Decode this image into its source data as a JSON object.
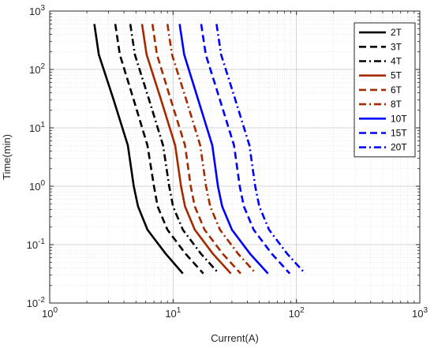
{
  "chart_data": {
    "type": "line",
    "xlabel": "Current(A)",
    "ylabel": "Time(min)",
    "xscale": "log",
    "yscale": "log",
    "xlim": [
      1,
      1000
    ],
    "ylim": [
      0.01,
      1000
    ],
    "grid": true,
    "minor_grid": true,
    "legend_position": "top-right",
    "x_ticks": [
      {
        "value": 1,
        "base": "10",
        "exp": "0"
      },
      {
        "value": 10,
        "base": "10",
        "exp": "1"
      },
      {
        "value": 100,
        "base": "10",
        "exp": "2"
      },
      {
        "value": 1000,
        "base": "10",
        "exp": "3"
      }
    ],
    "y_ticks": [
      {
        "value": 0.01,
        "base": "10",
        "exp": "-2"
      },
      {
        "value": 0.1,
        "base": "10",
        "exp": "-1"
      },
      {
        "value": 1,
        "base": "10",
        "exp": "0"
      },
      {
        "value": 10,
        "base": "10",
        "exp": "1"
      },
      {
        "value": 100,
        "base": "10",
        "exp": "2"
      },
      {
        "value": 1000,
        "base": "10",
        "exp": "3"
      }
    ],
    "series": [
      {
        "name": "2T",
        "color": "#000000",
        "dash": "solid",
        "x": [
          2.3,
          2.5,
          3.3,
          4.3,
          4.8,
          5.2,
          6.2,
          8.7,
          12.0
        ],
        "y": [
          600,
          180,
          30,
          5.0,
          1.0,
          0.45,
          0.18,
          0.07,
          0.032
        ]
      },
      {
        "name": "3T",
        "color": "#000000",
        "dash": "dashed",
        "x": [
          3.4,
          3.7,
          4.8,
          6.2,
          7.0,
          7.5,
          9.0,
          12.6,
          17.6
        ],
        "y": [
          600,
          180,
          30,
          5.0,
          1.0,
          0.45,
          0.18,
          0.07,
          0.032
        ]
      },
      {
        "name": "4T",
        "color": "#000000",
        "dash": "dashdot",
        "x": [
          4.5,
          4.9,
          6.4,
          8.3,
          9.3,
          10.0,
          12.0,
          16.8,
          23.5
        ],
        "y": [
          600,
          180,
          30,
          5.0,
          1.0,
          0.45,
          0.18,
          0.07,
          0.032
        ]
      },
      {
        "name": "5T",
        "color": "#A52A00",
        "dash": "solid",
        "x": [
          5.6,
          6.1,
          8.0,
          10.4,
          11.6,
          12.5,
          15.0,
          21.0,
          29.4
        ],
        "y": [
          600,
          180,
          30,
          5.0,
          1.0,
          0.45,
          0.18,
          0.07,
          0.032
        ]
      },
      {
        "name": "6T",
        "color": "#A52A00",
        "dash": "dashed",
        "x": [
          6.8,
          7.4,
          9.6,
          12.5,
          13.9,
          15.0,
          18.0,
          25.2,
          35.3
        ],
        "y": [
          600,
          180,
          30,
          5.0,
          1.0,
          0.45,
          0.18,
          0.07,
          0.032
        ]
      },
      {
        "name": "8T",
        "color": "#A52A00",
        "dash": "dashdot",
        "x": [
          9.0,
          9.8,
          12.8,
          16.6,
          18.5,
          20.0,
          24.0,
          33.6,
          47.0
        ],
        "y": [
          600,
          180,
          30,
          5.0,
          1.0,
          0.45,
          0.18,
          0.07,
          0.032
        ]
      },
      {
        "name": "10T",
        "color": "#0000FF",
        "dash": "solid",
        "x": [
          11.3,
          12.3,
          16.0,
          20.8,
          23.1,
          25.0,
          30.0,
          42.0,
          58.8
        ],
        "y": [
          600,
          180,
          30,
          5.0,
          1.0,
          0.45,
          0.18,
          0.07,
          0.032
        ]
      },
      {
        "name": "15T",
        "color": "#0000FF",
        "dash": "dashed",
        "x": [
          16.9,
          18.4,
          24.0,
          31.2,
          34.7,
          37.5,
          45.0,
          63.0,
          88.2
        ],
        "y": [
          600,
          180,
          30,
          5.0,
          1.0,
          0.45,
          0.18,
          0.07,
          0.032
        ]
      },
      {
        "name": "20T",
        "color": "#0000FF",
        "dash": "dashdot",
        "x": [
          22.5,
          24.5,
          32.0,
          41.6,
          46.3,
          50.0,
          60.0,
          84.0,
          117.6
        ],
        "y": [
          600,
          180,
          30,
          5.0,
          1.0,
          0.45,
          0.18,
          0.07,
          0.032
        ]
      }
    ]
  }
}
